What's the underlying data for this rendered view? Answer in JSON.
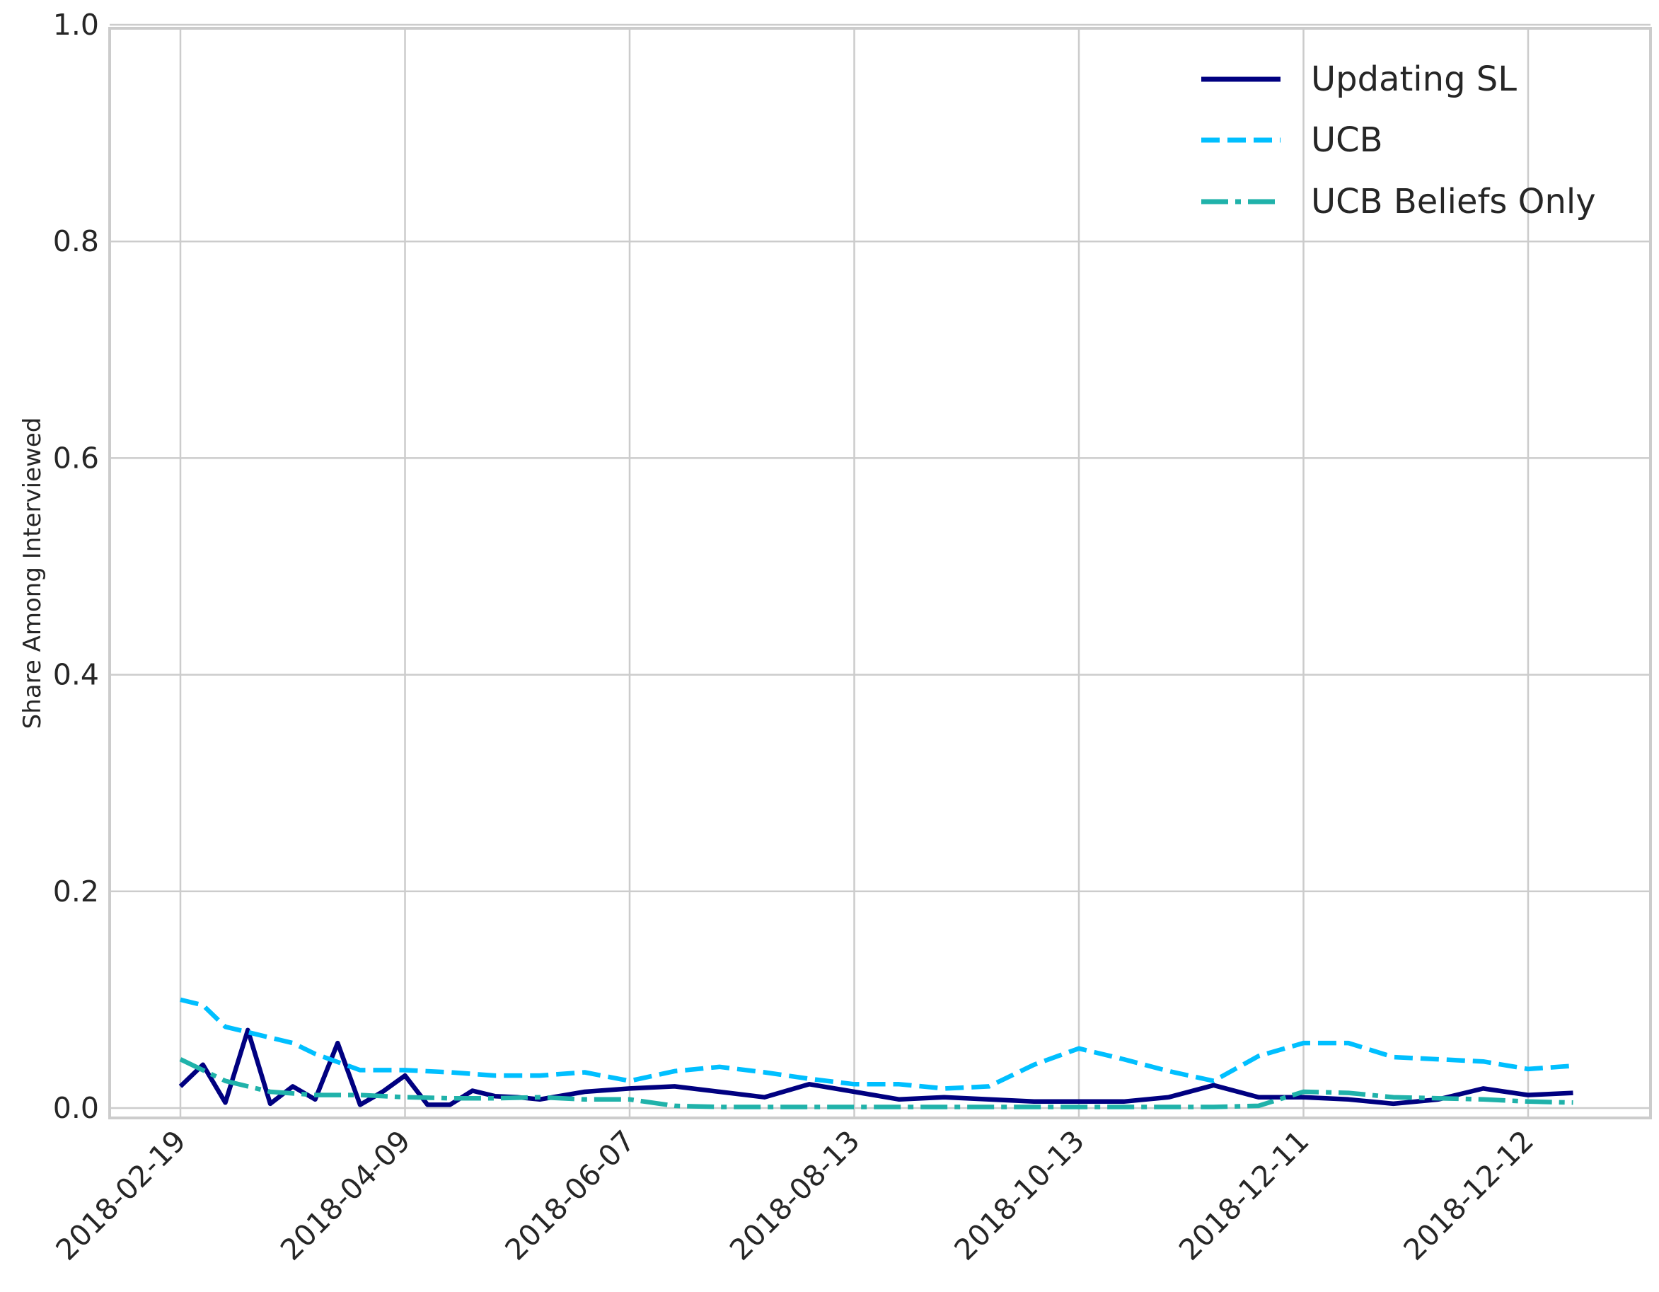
{
  "chart_data": {
    "type": "line",
    "title": "",
    "xlabel": "",
    "ylabel": "Share Among Interviewed",
    "ylim": [
      -0.005,
      1.0
    ],
    "yticks": [
      "0.0",
      "0.2",
      "0.4",
      "0.6",
      "0.8",
      "1.0"
    ],
    "xtick_labels": [
      "2018-02-19",
      "2018-04-09",
      "2018-06-07",
      "2018-08-13",
      "2018-10-13",
      "2018-12-11",
      "2018-12-12"
    ],
    "grid": true,
    "legend_position": "top-right",
    "series": [
      {
        "name": "Updating SL",
        "color": "#000080",
        "style": "solid",
        "x": [
          0.0,
          0.1,
          0.2,
          0.3,
          0.4,
          0.5,
          0.6,
          0.7,
          0.8,
          0.9,
          1.0,
          1.1,
          1.2,
          1.3,
          1.4,
          1.5,
          1.6,
          1.8,
          2.0,
          2.2,
          2.4,
          2.6,
          2.8,
          3.0,
          3.2,
          3.4,
          3.6,
          3.8,
          4.0,
          4.2,
          4.4,
          4.6,
          4.8,
          5.0,
          5.2,
          5.4,
          5.6,
          5.8,
          6.0,
          6.2
        ],
        "values": [
          0.02,
          0.04,
          0.005,
          0.072,
          0.004,
          0.02,
          0.008,
          0.06,
          0.003,
          0.015,
          0.03,
          0.003,
          0.003,
          0.016,
          0.011,
          0.01,
          0.008,
          0.015,
          0.018,
          0.02,
          0.015,
          0.01,
          0.022,
          0.015,
          0.008,
          0.01,
          0.008,
          0.006,
          0.006,
          0.006,
          0.01,
          0.021,
          0.01,
          0.01,
          0.008,
          0.004,
          0.008,
          0.018,
          0.012,
          0.014
        ]
      },
      {
        "name": "UCB",
        "color": "#00bfff",
        "style": "dashed",
        "x": [
          0.0,
          0.1,
          0.2,
          0.3,
          0.4,
          0.5,
          0.6,
          0.8,
          1.0,
          1.2,
          1.4,
          1.6,
          1.8,
          2.0,
          2.2,
          2.4,
          2.6,
          2.8,
          3.0,
          3.2,
          3.4,
          3.6,
          3.8,
          4.0,
          4.2,
          4.4,
          4.6,
          4.8,
          5.0,
          5.2,
          5.4,
          5.6,
          5.8,
          6.0,
          6.2
        ],
        "values": [
          0.1,
          0.095,
          0.075,
          0.07,
          0.065,
          0.06,
          0.05,
          0.035,
          0.035,
          0.033,
          0.03,
          0.03,
          0.033,
          0.025,
          0.034,
          0.038,
          0.033,
          0.027,
          0.022,
          0.022,
          0.018,
          0.02,
          0.04,
          0.055,
          0.045,
          0.034,
          0.025,
          0.048,
          0.06,
          0.06,
          0.047,
          0.045,
          0.043,
          0.036,
          0.039
        ]
      },
      {
        "name": "UCB Beliefs Only",
        "color": "#20b2aa",
        "style": "dashdot",
        "x": [
          0.0,
          0.1,
          0.2,
          0.3,
          0.4,
          0.6,
          0.8,
          1.0,
          1.2,
          1.4,
          1.6,
          1.8,
          2.0,
          2.2,
          2.4,
          2.6,
          2.8,
          3.0,
          3.2,
          3.4,
          3.6,
          3.8,
          4.0,
          4.2,
          4.4,
          4.6,
          4.8,
          5.0,
          5.2,
          5.4,
          5.6,
          5.8,
          6.0,
          6.2
        ],
        "values": [
          0.045,
          0.035,
          0.025,
          0.02,
          0.015,
          0.012,
          0.012,
          0.01,
          0.009,
          0.009,
          0.01,
          0.008,
          0.008,
          0.002,
          0.001,
          0.001,
          0.001,
          0.001,
          0.001,
          0.001,
          0.001,
          0.001,
          0.001,
          0.001,
          0.001,
          0.001,
          0.002,
          0.015,
          0.014,
          0.01,
          0.009,
          0.008,
          0.006,
          0.005
        ]
      }
    ]
  }
}
